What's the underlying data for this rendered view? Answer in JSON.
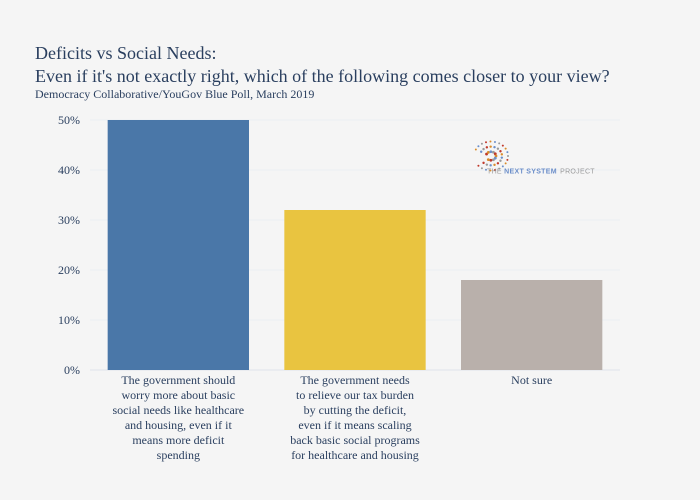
{
  "title_lines": [
    "Deficits vs Social Needs:",
    "Even if it's not exactly right, which of the following comes closer to your view?"
  ],
  "subtitle": "Democracy Collaborative/YouGov Blue Poll, March 2019",
  "logo": {
    "icon": "sunburst-dots-icon",
    "text_the": "THE",
    "text_main": "NEXT SYSTEM",
    "text_project": "PROJECT",
    "colors": [
      "#c0392b",
      "#d98c2b",
      "#6b8ec9",
      "#9a9a9a"
    ]
  },
  "chart_data": {
    "type": "bar",
    "title": "Deficits vs Social Needs: Even if it's not exactly right, which of the following comes closer to your view?",
    "subtitle": "Democracy Collaborative/YouGov Blue Poll, March 2019",
    "categories": [
      [
        "The government should",
        "worry more about basic",
        "social needs like healthcare",
        "and housing, even if it",
        "means more deficit",
        "spending"
      ],
      [
        "The government needs",
        "to relieve our tax burden",
        "by cutting the deficit,",
        "even if it means scaling",
        "back basic social programs",
        "for healthcare and housing"
      ],
      [
        "Not sure"
      ]
    ],
    "values": [
      50,
      32,
      18
    ],
    "colors": [
      "#4a77a8",
      "#e9c440",
      "#b9b0ab"
    ],
    "ylim": [
      0,
      50
    ],
    "yticks": [
      0,
      10,
      20,
      30,
      40,
      50
    ],
    "ytick_labels": [
      "0%",
      "10%",
      "20%",
      "30%",
      "40%",
      "50%"
    ],
    "xlabel": "",
    "ylabel": "",
    "grid": true,
    "legend": "none"
  }
}
